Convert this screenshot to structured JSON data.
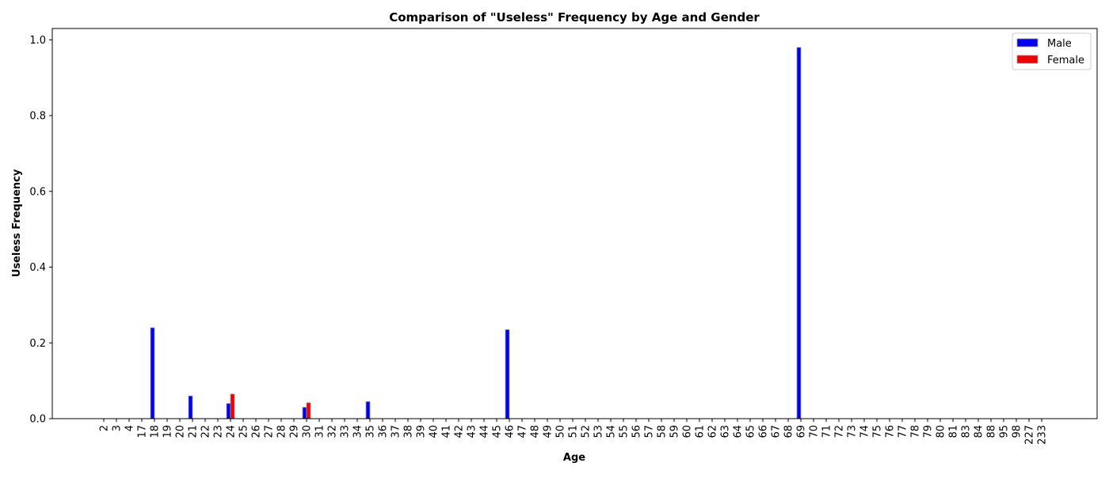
{
  "chart_data": {
    "type": "bar",
    "title": "Comparison of \"Useless\" Frequency by Age and Gender",
    "xlabel": "Age",
    "ylabel": "Useless Frequency",
    "categories": [
      "2",
      "3",
      "4",
      "17",
      "18",
      "19",
      "20",
      "21",
      "22",
      "23",
      "24",
      "25",
      "26",
      "27",
      "28",
      "29",
      "30",
      "31",
      "32",
      "33",
      "34",
      "35",
      "36",
      "37",
      "38",
      "39",
      "40",
      "41",
      "42",
      "43",
      "44",
      "45",
      "46",
      "47",
      "48",
      "49",
      "50",
      "51",
      "52",
      "53",
      "54",
      "55",
      "56",
      "57",
      "58",
      "59",
      "60",
      "61",
      "62",
      "63",
      "64",
      "65",
      "66",
      "67",
      "68",
      "69",
      "70",
      "71",
      "72",
      "73",
      "74",
      "75",
      "76",
      "77",
      "78",
      "79",
      "80",
      "81",
      "83",
      "84",
      "88",
      "95",
      "98",
      "227",
      "233"
    ],
    "series": [
      {
        "name": "Male",
        "color": "#0000ee",
        "values": [
          0,
          0,
          0,
          0,
          0.24,
          0,
          0,
          0.06,
          0,
          0,
          0.04,
          0,
          0,
          0,
          0,
          0,
          0.03,
          0,
          0,
          0,
          0,
          0.045,
          0,
          0,
          0,
          0,
          0,
          0,
          0,
          0,
          0,
          0,
          0.235,
          0,
          0,
          0,
          0,
          0,
          0,
          0,
          0,
          0,
          0,
          0,
          0,
          0,
          0,
          0,
          0,
          0,
          0,
          0,
          0,
          0,
          0,
          0.98,
          0,
          0,
          0,
          0,
          0,
          0,
          0,
          0,
          0,
          0,
          0,
          0,
          0,
          0,
          0,
          0,
          0,
          0,
          0
        ]
      },
      {
        "name": "Female",
        "color": "#ee0000",
        "values": [
          0,
          0,
          0,
          0,
          0,
          0,
          0,
          0,
          0,
          0,
          0.065,
          0,
          0,
          0,
          0,
          0,
          0.042,
          0,
          0,
          0,
          0,
          0,
          0,
          0,
          0,
          0,
          0,
          0,
          0,
          0,
          0,
          0,
          0,
          0,
          0,
          0,
          0,
          0,
          0,
          0,
          0,
          0,
          0,
          0,
          0,
          0,
          0,
          0,
          0,
          0,
          0,
          0,
          0,
          0,
          0,
          0,
          0,
          0,
          0,
          0,
          0,
          0,
          0,
          0,
          0,
          0,
          0,
          0,
          0,
          0,
          0,
          0,
          0,
          0,
          0
        ]
      }
    ],
    "yticks": [
      "0.0",
      "0.2",
      "0.4",
      "0.6",
      "0.8",
      "1.0"
    ],
    "ylim": [
      0,
      1.03
    ],
    "grid": false,
    "legend_position": "top-right"
  }
}
